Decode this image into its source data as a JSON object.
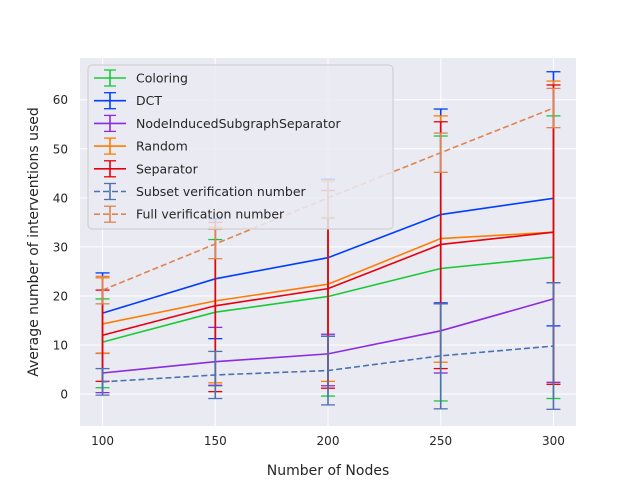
{
  "chart_data": {
    "type": "line",
    "title": "",
    "xlabel": "Number of Nodes",
    "ylabel": "Average number of interventions used",
    "x": [
      100,
      150,
      200,
      250,
      300
    ],
    "xticks": [
      "100",
      "150",
      "200",
      "250",
      "300"
    ],
    "yticks": [
      "0",
      "10",
      "20",
      "30",
      "40",
      "50",
      "60"
    ],
    "xlim": [
      90,
      310
    ],
    "ylim": [
      -6.5,
      68.5
    ],
    "grid": true,
    "legend_position": "top-left",
    "series": [
      {
        "name": "Coloring",
        "color": "#1ac938",
        "dashed": false,
        "values": [
          10.6,
          16.7,
          19.9,
          25.6,
          27.9
        ],
        "err_lower": [
          9.3,
          15.0,
          20.3,
          27.0,
          28.8
        ],
        "err_upper": [
          8.8,
          14.8,
          15.9,
          27.0,
          28.8
        ]
      },
      {
        "name": "DCT",
        "color": "#023eff",
        "dashed": false,
        "values": [
          16.5,
          23.5,
          27.8,
          36.6,
          39.9
        ],
        "err_lower": [
          8.2,
          12.2,
          16.0,
          18.0,
          26.0
        ],
        "err_upper": [
          8.2,
          12.2,
          16.0,
          21.5,
          25.8
        ]
      },
      {
        "name": "NodeInducedSubgraphSeparator",
        "color": "#8b2be2",
        "dashed": false,
        "values": [
          4.3,
          6.6,
          8.2,
          12.9,
          19.4
        ],
        "err_lower": [
          4.0,
          4.8,
          6.5,
          8.6,
          17.0
        ],
        "err_upper": [
          4.0,
          7.0,
          4.0,
          5.5,
          3.3
        ]
      },
      {
        "name": "Random",
        "color": "#ff7c00",
        "dashed": false,
        "values": [
          14.3,
          19.0,
          22.4,
          31.7,
          33.0
        ],
        "err_lower": [
          6.0,
          16.7,
          19.8,
          25.2,
          31.0
        ],
        "err_upper": [
          9.4,
          15.0,
          21.0,
          25.0,
          30.8
        ]
      },
      {
        "name": "Separator",
        "color": "#e8000b",
        "dashed": false,
        "values": [
          12.0,
          18.0,
          21.5,
          30.5,
          33.0
        ],
        "err_lower": [
          9.4,
          17.5,
          20.3,
          25.3,
          31.0
        ],
        "err_upper": [
          9.2,
          17.0,
          20.0,
          25.0,
          30.0
        ]
      },
      {
        "name": "Subset verification number",
        "color": "#4c72b0",
        "dashed": true,
        "values": [
          2.5,
          3.9,
          4.8,
          7.8,
          9.8
        ],
        "err_lower": [
          2.7,
          4.8,
          7.0,
          10.8,
          12.9
        ],
        "err_upper": [
          2.7,
          4.8,
          7.0,
          10.6,
          12.9
        ]
      },
      {
        "name": "Full verification number",
        "color": "#dd8452",
        "dashed": true,
        "values": [
          21.2,
          30.6,
          40.0,
          49.2,
          58.3
        ],
        "err_lower": [
          2.8,
          3.0,
          4.0,
          4.0,
          4.0
        ],
        "err_upper": [
          2.8,
          3.0,
          3.5,
          4.0,
          4.0
        ]
      }
    ]
  }
}
